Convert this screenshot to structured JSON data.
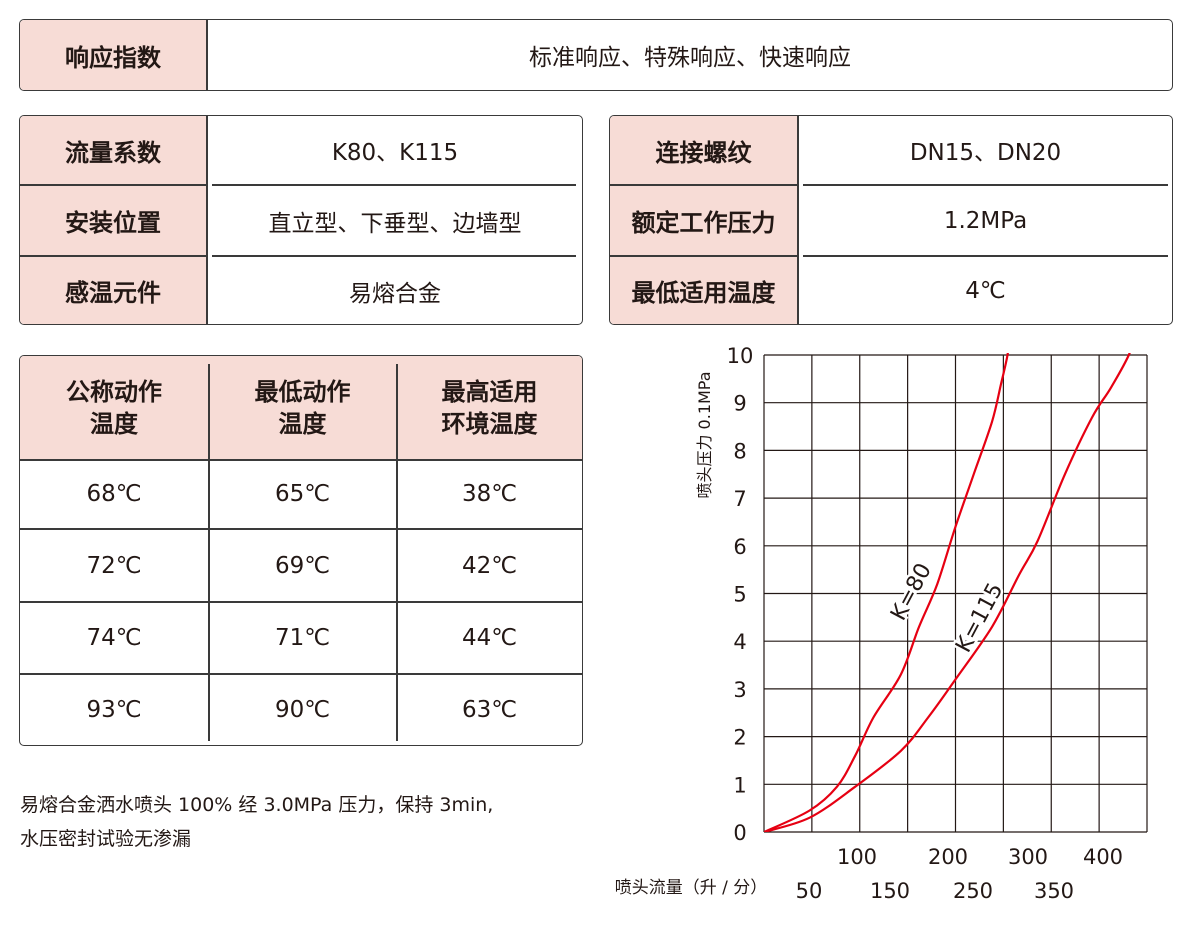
{
  "response": {
    "label": "响应指数",
    "value": "标准响应、特殊响应、快速响应"
  },
  "specs_left": [
    {
      "label": "流量系数",
      "value": "K80、K115"
    },
    {
      "label": "安装位置",
      "value": "直立型、下垂型、边墙型"
    },
    {
      "label": "感温元件",
      "value": "易熔合金"
    }
  ],
  "specs_right": [
    {
      "label": "连接螺纹",
      "value": "DN15、DN20"
    },
    {
      "label": "额定工作压力",
      "value": "1.2MPa"
    },
    {
      "label": "最低适用温度",
      "value": "4℃"
    }
  ],
  "temp_table": {
    "headers": [
      [
        "公称动作",
        "温度"
      ],
      [
        "最低动作",
        "温度"
      ],
      [
        "最高适用",
        "环境温度"
      ]
    ],
    "rows": [
      [
        "68℃",
        "65℃",
        "38℃"
      ],
      [
        "72℃",
        "69℃",
        "42℃"
      ],
      [
        "74℃",
        "71℃",
        "44℃"
      ],
      [
        "93℃",
        "90℃",
        "63℃"
      ]
    ]
  },
  "note": {
    "line1": "易熔合金洒水喷头 100% 经 3.0MPa 压力，保持 3min,",
    "line2": "水压密封试验无渗漏"
  },
  "colors": {
    "pink": "#f7dcd6",
    "curve": "#e60012",
    "border": "#3a3a3a"
  },
  "chart_data": {
    "type": "line",
    "ylabel": "喷头压力 0.1MPa",
    "xlabel": "喷头流量（升 / 分）",
    "xlim": [
      0,
      420
    ],
    "ylim": [
      0,
      10
    ],
    "y_ticks": [
      "0",
      "1",
      "2",
      "3",
      "4",
      "5",
      "6",
      "7",
      "8",
      "9",
      "10"
    ],
    "x_ticks_upper": [
      "100",
      "200",
      "300",
      "400"
    ],
    "x_ticks_lower": [
      "50",
      "150",
      "250",
      "350"
    ],
    "series": [
      {
        "name": "K=80",
        "x": [
          0,
          50,
          80,
          100,
          120,
          150,
          170,
          190,
          210,
          230,
          250,
          260,
          267,
          270
        ],
        "y": [
          0,
          0.45,
          0.95,
          1.6,
          2.4,
          3.3,
          4.3,
          5.2,
          6.4,
          7.5,
          8.6,
          9.4,
          10,
          10.5
        ]
      },
      {
        "name": "K=115",
        "x": [
          0,
          50,
          100,
          150,
          180,
          210,
          250,
          280,
          300,
          330,
          360,
          380,
          400,
          410
        ],
        "y": [
          0,
          0.3,
          0.95,
          1.7,
          2.4,
          3.2,
          4.3,
          5.4,
          6.1,
          7.5,
          8.7,
          9.3,
          10,
          10.6
        ]
      }
    ]
  }
}
